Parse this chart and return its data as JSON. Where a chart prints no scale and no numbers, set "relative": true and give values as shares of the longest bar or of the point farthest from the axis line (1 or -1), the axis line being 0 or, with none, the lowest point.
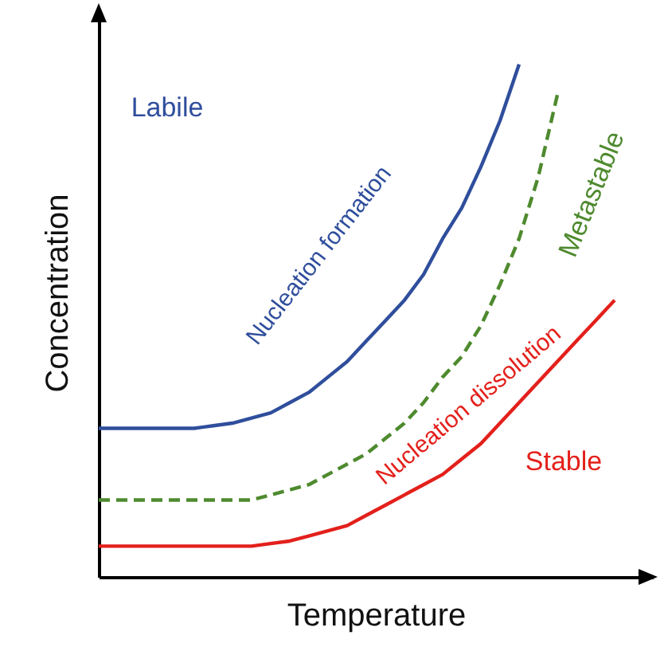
{
  "chart_data": {
    "type": "line",
    "relative": true,
    "xlabel": "Temperature",
    "ylabel": "Concentration",
    "grid": false,
    "categories": [
      null,
      null,
      null,
      null,
      null,
      null,
      null,
      null,
      null,
      null,
      null,
      null,
      null,
      null,
      null,
      null,
      null,
      null,
      null,
      null,
      null,
      null,
      null,
      null,
      null,
      null,
      null,
      null,
      null,
      null
    ],
    "series": [
      {
        "color": "#2f4e9c",
        "line_style": "solid",
        "values": [
          0.29,
          0.29,
          0.29,
          0.29,
          0.29,
          0.29,
          0.295,
          0.3,
          0.31,
          0.32,
          0.34,
          0.36,
          0.39,
          0.42,
          0.46,
          0.5,
          0.54,
          0.59,
          0.66,
          0.72,
          0.8,
          0.89,
          1,
          null,
          null,
          null,
          null,
          null,
          null,
          null
        ]
      },
      {
        "color": "#4e8a2e",
        "line_style": "dashed",
        "values": [
          0.15,
          0.15,
          0.15,
          0.15,
          0.15,
          0.15,
          0.15,
          0.15,
          0.15,
          0.16,
          0.17,
          0.18,
          0.2,
          0.22,
          0.24,
          0.27,
          0.3,
          0.34,
          0.39,
          0.43,
          0.49,
          0.57,
          0.66,
          0.78,
          0.94,
          null,
          null,
          null,
          null,
          null
        ]
      },
      {
        "color": "#e3201b",
        "line_style": "solid",
        "values": [
          0.06,
          0.06,
          0.06,
          0.06,
          0.06,
          0.06,
          0.06,
          0.06,
          0.06,
          0.065,
          0.07,
          0.08,
          0.09,
          0.1,
          0.12,
          0.14,
          0.16,
          0.18,
          0.2,
          0.23,
          0.26,
          0.3,
          0.34,
          0.38,
          0.42,
          0.46,
          0.5,
          0.54,
          null,
          null
        ]
      }
    ],
    "annotations": [
      "Labile",
      "Nucleation formation",
      "Metastable",
      "Nucleation dissolution",
      "Stable"
    ]
  }
}
